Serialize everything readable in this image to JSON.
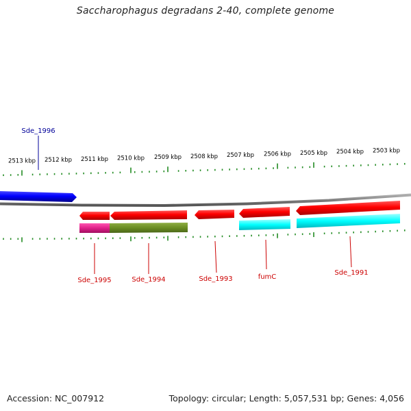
{
  "title": "Saccharophagus degradans 2-40, complete genome",
  "footer": {
    "accession": "Accession: NC_007912",
    "summary": "Topology: circular; Length: 5,057,531 bp; Genes: 4,056"
  },
  "ticks": [
    "2513 kbp",
    "2512 kbp",
    "2511 kbp",
    "2510 kbp",
    "2509 kbp",
    "2508 kbp",
    "2507 kbp",
    "2506 kbp",
    "2505 kbp",
    "2504 kbp",
    "2503 kbp"
  ],
  "genes": [
    {
      "name": "Sde_1996",
      "strand": "+",
      "label_color": "#000099",
      "color": "#0000ff"
    },
    {
      "name": "Sde_1995",
      "strand": "-",
      "label_color": "#cc0000",
      "color": "#ff0000"
    },
    {
      "name": "Sde_1994",
      "strand": "-",
      "label_color": "#cc0000",
      "color": "#ff0000"
    },
    {
      "name": "Sde_1993",
      "strand": "-",
      "label_color": "#cc0000",
      "color": "#ff0000"
    },
    {
      "name": "fumC",
      "strand": "-",
      "label_color": "#cc0000",
      "color": "#ff0000"
    },
    {
      "name": "Sde_1991",
      "strand": "-",
      "label_color": "#cc0000",
      "color": "#ff0000"
    }
  ],
  "colors": {
    "backbone": "#808080",
    "tick": "#228b22",
    "cog_magenta": "#e0208a",
    "cog_olive": "#6b8e23",
    "cog_cyan": "#00ffff"
  }
}
